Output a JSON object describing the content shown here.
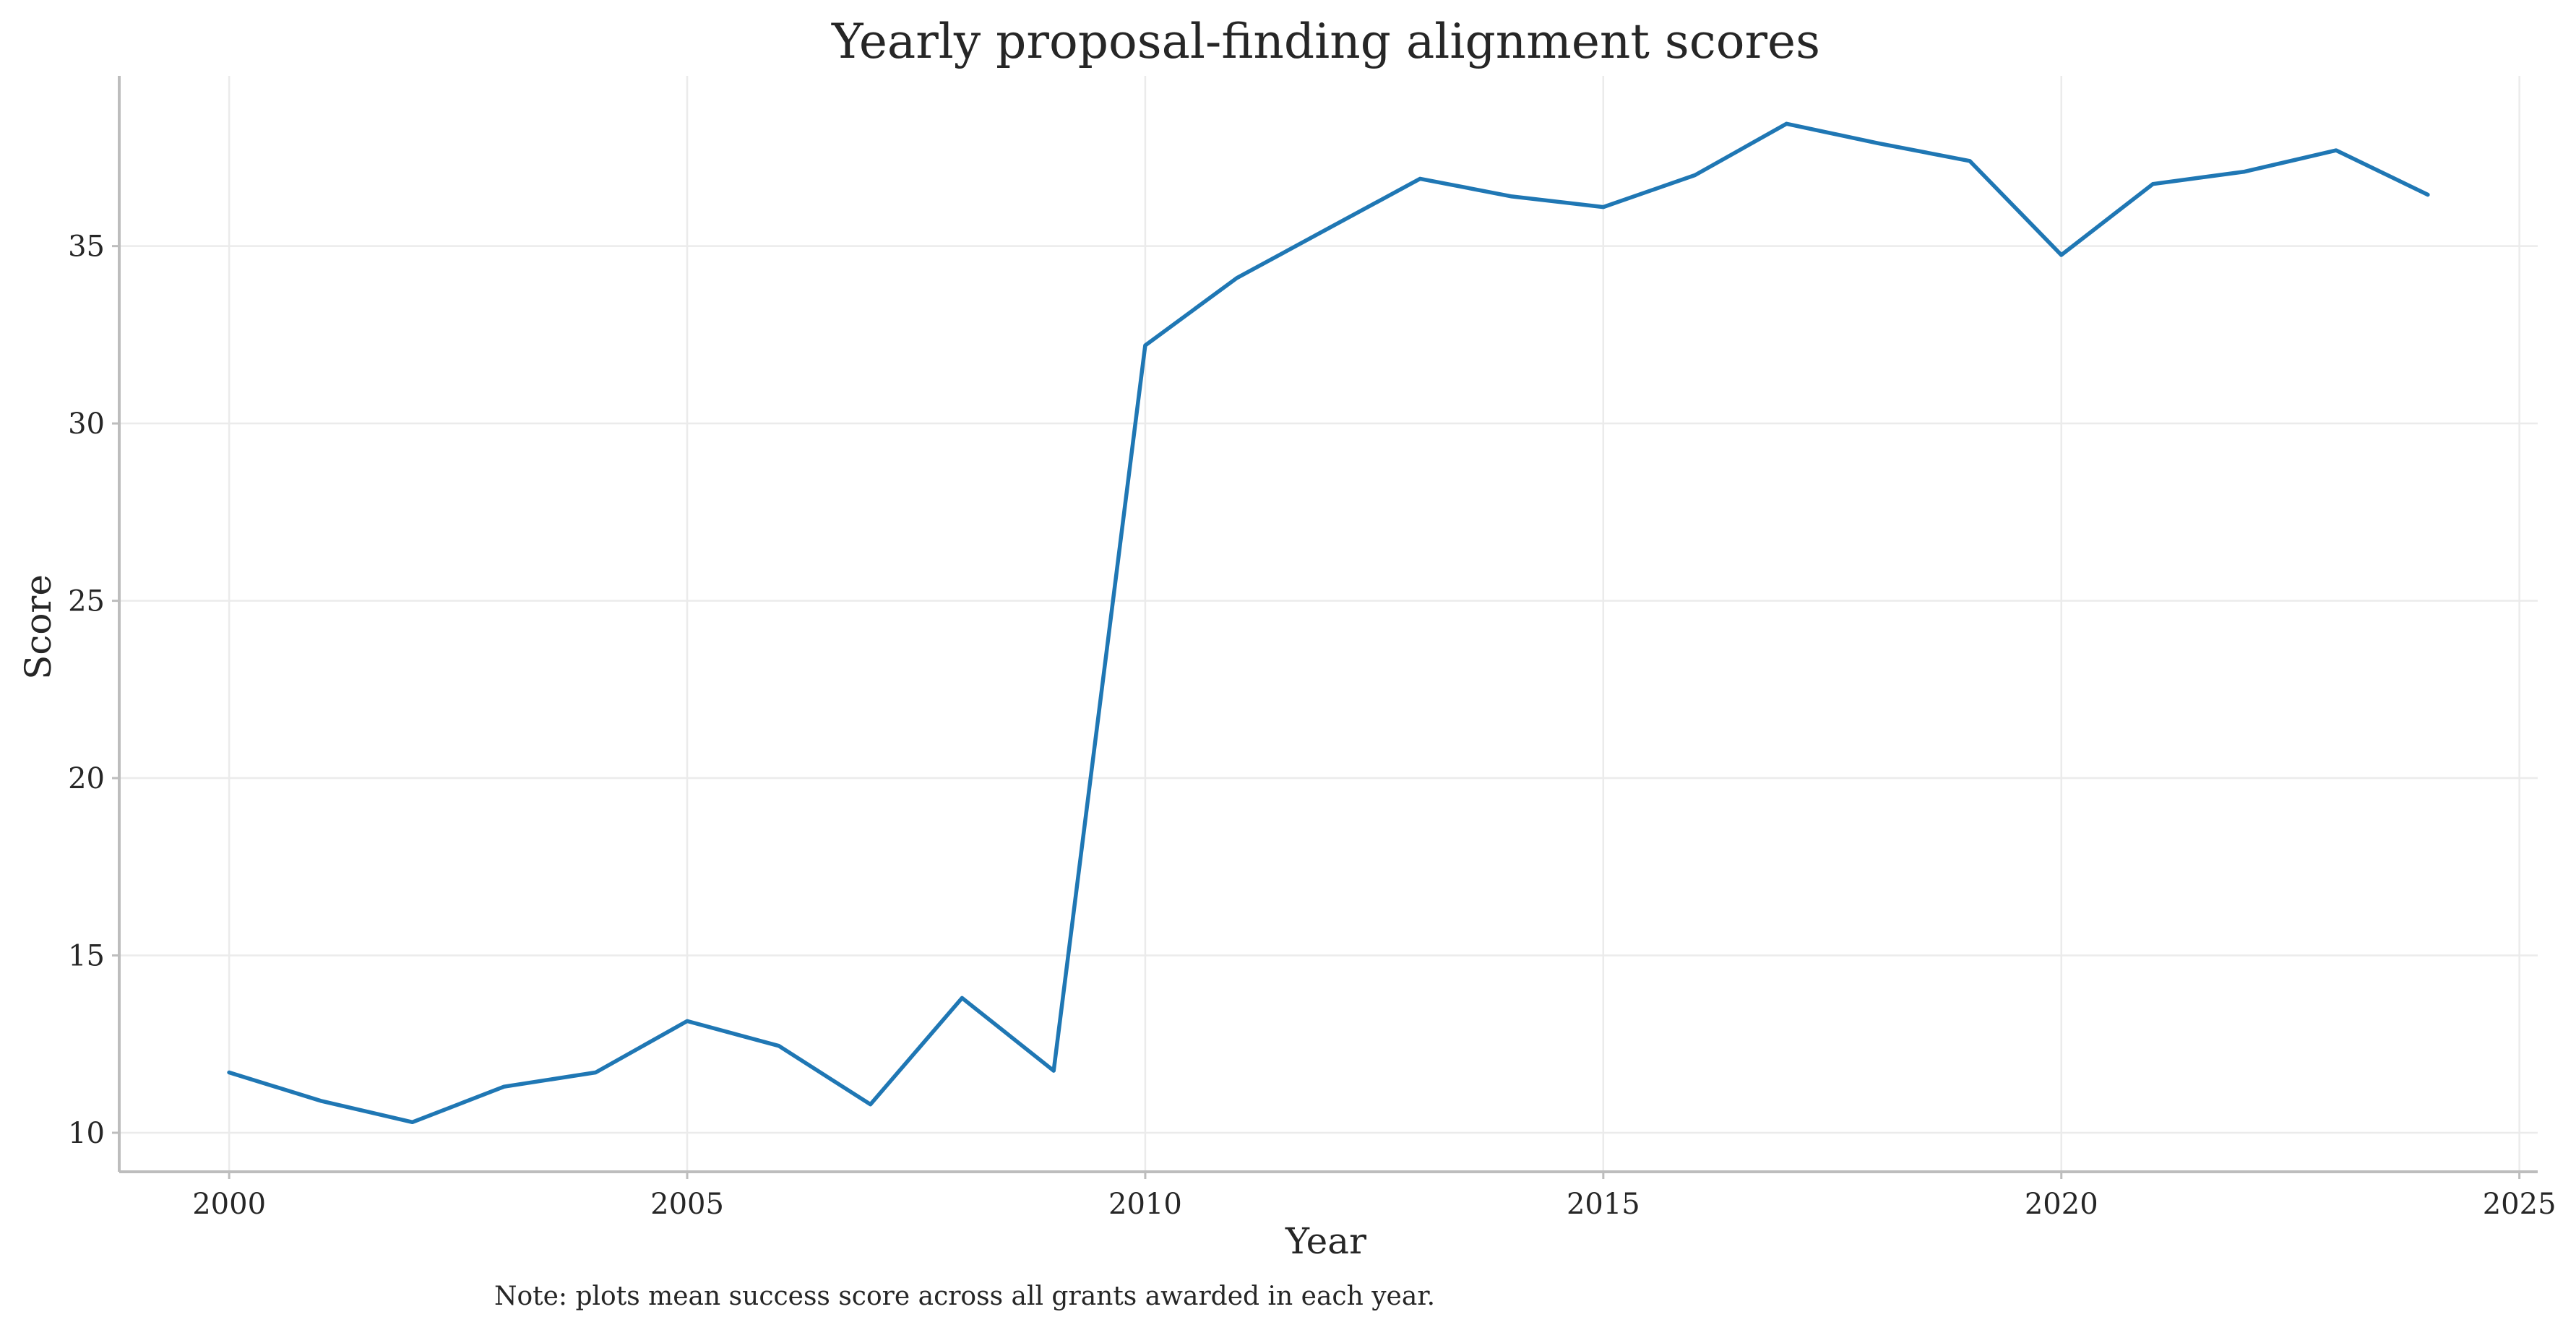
{
  "chart_data": {
    "type": "line",
    "title": "Yearly proposal-finding alignment scores",
    "xlabel": "Year",
    "ylabel": "Score",
    "note": "Note: plots mean success score across all grants awarded in each year.",
    "xlim": [
      1998.8,
      2025.2
    ],
    "ylim": [
      8.9,
      39.8
    ],
    "x_ticks": [
      2000,
      2005,
      2010,
      2015,
      2020,
      2025
    ],
    "y_ticks": [
      10,
      15,
      20,
      25,
      30,
      35
    ],
    "grid": true,
    "series": [
      {
        "color": "#1f77b4",
        "x": [
          2000,
          2001,
          2002,
          2003,
          2004,
          2005,
          2006,
          2007,
          2008,
          2009,
          2010,
          2011,
          2012,
          2013,
          2014,
          2015,
          2016,
          2017,
          2018,
          2019,
          2020,
          2021,
          2022,
          2023,
          2024
        ],
        "values": [
          11.7,
          10.9,
          10.3,
          11.3,
          11.7,
          13.15,
          12.45,
          10.8,
          13.8,
          11.75,
          32.2,
          34.1,
          35.5,
          36.9,
          36.4,
          36.1,
          37.0,
          38.45,
          37.9,
          37.4,
          34.75,
          36.75,
          37.1,
          37.7,
          36.45
        ]
      }
    ]
  }
}
